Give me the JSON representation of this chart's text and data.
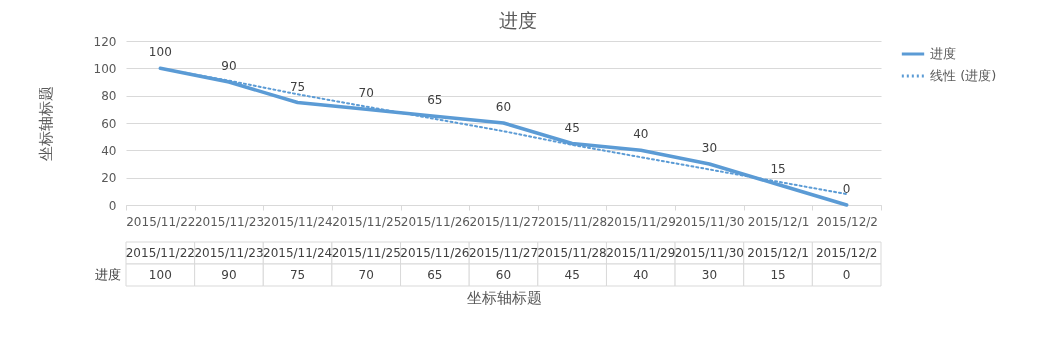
{
  "chart_data": {
    "type": "line",
    "title": "进度",
    "xlabel": "坐标轴标题",
    "ylabel": "坐标轴标题",
    "categories": [
      "2015/11/22",
      "2015/11/23",
      "2015/11/24",
      "2015/11/25",
      "2015/11/26",
      "2015/11/27",
      "2015/11/28",
      "2015/11/29",
      "2015/11/30",
      "2015/12/1",
      "2015/12/2"
    ],
    "series": [
      {
        "name": "进度",
        "color": "#5b9bd5",
        "line_style": "solid",
        "values": [
          100,
          90,
          75,
          70,
          65,
          60,
          45,
          40,
          30,
          15,
          0
        ],
        "value_labels": [
          "100",
          "90",
          "75",
          "70",
          "65",
          "60",
          "45",
          "40",
          "30",
          "15",
          "0"
        ]
      },
      {
        "name": "线性 (进度)",
        "color": "#5b9bd5",
        "line_style": "dotted",
        "values": [
          100,
          91,
          81,
          72,
          63,
          54,
          44,
          35,
          26,
          17,
          8
        ]
      }
    ],
    "ylim": [
      0,
      120
    ],
    "yticks": [
      0,
      20,
      40,
      60,
      80,
      100,
      120
    ],
    "grid": "y",
    "legend": "right",
    "marker": "none"
  }
}
